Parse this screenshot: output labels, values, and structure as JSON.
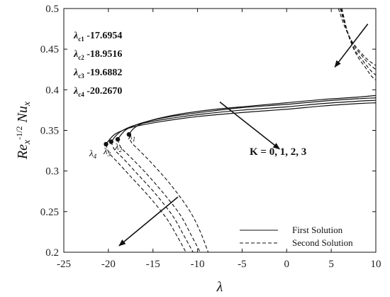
{
  "chart_data": {
    "type": "line",
    "xlabel": "λ",
    "ylabel_main": "Re",
    "ylabel_x1": "x",
    "ylabel_exp": "-1/2",
    "ylabel_nu": "Nu",
    "ylabel_x2": "x",
    "xlim": [
      -25,
      10
    ],
    "ylim": [
      0.2,
      0.5
    ],
    "xticks": [
      -25,
      -20,
      -15,
      -10,
      -5,
      0,
      5,
      10
    ],
    "yticks": [
      0.2,
      0.25,
      0.3,
      0.35,
      0.4,
      0.45,
      0.5
    ],
    "critical_values": [
      {
        "sym": "λ",
        "sub": "c1",
        "value": "-17.6954",
        "x": -17.6954,
        "y": 0.345
      },
      {
        "sym": "λ",
        "sub": "c2",
        "value": "-18.9516",
        "x": -18.9516,
        "y": 0.339
      },
      {
        "sym": "λ",
        "sub": "c3",
        "value": "-19.6882",
        "x": -19.6882,
        "y": 0.336
      },
      {
        "sym": "λ",
        "sub": "c4",
        "value": "-20.2670",
        "x": -20.267,
        "y": 0.333
      }
    ],
    "point_labels": [
      {
        "sym": "λ",
        "sub": "1"
      },
      {
        "sym": "λ",
        "sub": "2"
      },
      {
        "sym": "λ",
        "sub": "3"
      },
      {
        "sym": "λ",
        "sub": "4"
      }
    ],
    "annotation": "K = 0, 1, 2, 3",
    "legend": [
      {
        "name": "First Solution",
        "style": "solid"
      },
      {
        "name": "Second Solution",
        "style": "dashed"
      }
    ],
    "first_solution": [
      {
        "x": [
          -17.6954,
          -17.2,
          -16.5,
          -15,
          -12,
          -8,
          -4,
          0,
          4,
          8,
          10
        ],
        "y": [
          0.345,
          0.352,
          0.357,
          0.363,
          0.37,
          0.376,
          0.38,
          0.384,
          0.388,
          0.391,
          0.393
        ]
      },
      {
        "x": [
          -18.9516,
          -18.4,
          -17.7,
          -16,
          -13,
          -9,
          -5,
          0,
          4,
          8,
          10
        ],
        "y": [
          0.339,
          0.347,
          0.353,
          0.36,
          0.367,
          0.373,
          0.378,
          0.382,
          0.386,
          0.389,
          0.39
        ]
      },
      {
        "x": [
          -19.6882,
          -19.1,
          -18.4,
          -16.8,
          -13.5,
          -9.5,
          -5,
          0,
          4,
          8,
          10
        ],
        "y": [
          0.336,
          0.344,
          0.35,
          0.357,
          0.364,
          0.37,
          0.375,
          0.379,
          0.383,
          0.386,
          0.387
        ]
      },
      {
        "x": [
          -20.267,
          -19.7,
          -19.0,
          -17.3,
          -14,
          -10,
          -5,
          0,
          4,
          8,
          10
        ],
        "y": [
          0.333,
          0.341,
          0.347,
          0.354,
          0.361,
          0.367,
          0.372,
          0.376,
          0.38,
          0.383,
          0.384
        ]
      }
    ],
    "second_solution_left": [
      {
        "x": [
          -17.6954,
          -17.4,
          -16.5,
          -15,
          -13,
          -11,
          -9.8,
          -8.8
        ],
        "y": [
          0.345,
          0.335,
          0.325,
          0.308,
          0.283,
          0.253,
          0.228,
          0.2
        ]
      },
      {
        "x": [
          -18.9516,
          -18.6,
          -17.6,
          -16,
          -14,
          -12,
          -10.8,
          -9.7
        ],
        "y": [
          0.339,
          0.329,
          0.318,
          0.3,
          0.275,
          0.247,
          0.223,
          0.2
        ]
      },
      {
        "x": [
          -19.6882,
          -19.3,
          -18.3,
          -16.8,
          -14.8,
          -12.8,
          -11.6,
          -10.5
        ],
        "y": [
          0.336,
          0.326,
          0.315,
          0.297,
          0.273,
          0.245,
          0.222,
          0.2
        ]
      },
      {
        "x": [
          -20.267,
          -19.9,
          -18.9,
          -17.4,
          -15.4,
          -13.5,
          -12.3,
          -11.3
        ],
        "y": [
          0.333,
          0.322,
          0.31,
          0.292,
          0.268,
          0.242,
          0.22,
          0.2
        ]
      }
    ],
    "second_solution_right": [
      {
        "x": [
          5.8,
          6.5,
          7.3,
          8.3,
          9.2,
          10
        ],
        "y": [
          0.5,
          0.478,
          0.46,
          0.446,
          0.436,
          0.43
        ]
      },
      {
        "x": [
          6.0,
          6.7,
          7.5,
          8.5,
          9.3,
          10
        ],
        "y": [
          0.5,
          0.475,
          0.455,
          0.441,
          0.431,
          0.425
        ]
      },
      {
        "x": [
          6.1,
          6.8,
          7.6,
          8.6,
          9.4,
          10
        ],
        "y": [
          0.5,
          0.472,
          0.45,
          0.435,
          0.424,
          0.418
        ]
      },
      {
        "x": [
          6.2,
          6.9,
          7.8,
          8.8,
          9.5,
          10
        ],
        "y": [
          0.5,
          0.468,
          0.444,
          0.428,
          0.417,
          0.412
        ]
      }
    ],
    "arrows": [
      {
        "from": [
          -7.5,
          0.385
        ],
        "to": [
          -0.8,
          0.327
        ]
      },
      {
        "from": [
          -12.2,
          0.268
        ],
        "to": [
          -18.8,
          0.208
        ]
      },
      {
        "from": [
          9.1,
          0.481
        ],
        "to": [
          5.4,
          0.428
        ]
      }
    ]
  }
}
